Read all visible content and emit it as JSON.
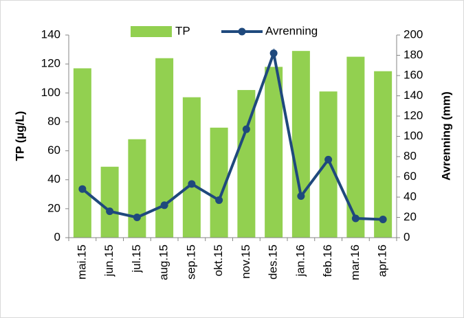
{
  "chart_data": {
    "type": "bar_line",
    "categories": [
      "mai.15",
      "jun.15",
      "jul.15",
      "aug.15",
      "sep.15",
      "okt.15",
      "nov.15",
      "des.15",
      "jan.16",
      "feb.16",
      "mar.16",
      "apr.16"
    ],
    "series": [
      {
        "name": "TP",
        "type": "bar",
        "color": "#92d050",
        "values": [
          117,
          49,
          68,
          124,
          97,
          76,
          102,
          118,
          129,
          101,
          125,
          115
        ]
      },
      {
        "name": "Avrenning",
        "type": "line",
        "axis": "y2",
        "color": "#1f497d",
        "values": [
          48,
          26,
          20,
          32,
          53,
          37,
          107,
          182,
          41,
          77,
          19,
          18
        ]
      }
    ],
    "y_label": "TP (µg/L)",
    "y2_label": "Avrenning (mm)",
    "ylim": [
      0,
      140
    ],
    "yticks": [
      0,
      20,
      40,
      60,
      80,
      100,
      120,
      140
    ],
    "y2lim": [
      0,
      200
    ],
    "y2ticks": [
      0,
      20,
      40,
      60,
      80,
      100,
      120,
      140,
      160,
      180,
      200
    ],
    "legend": "top"
  }
}
